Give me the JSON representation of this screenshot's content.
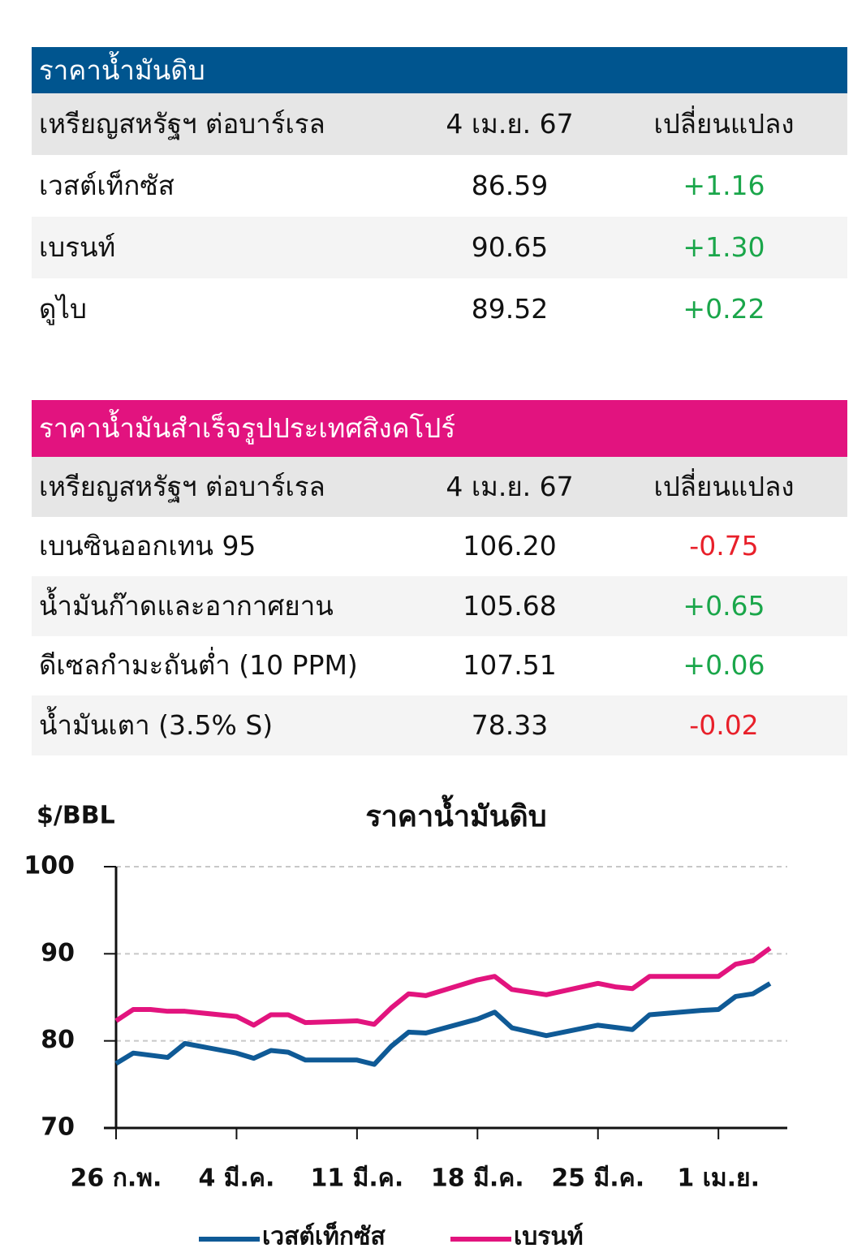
{
  "tables": [
    {
      "title": "ราคาน้ำมันดิบ",
      "color": "#00558f",
      "header": [
        "เหรียญสหรัฐฯ ต่อบาร์เรล",
        "4 เม.ย. 67",
        "เปลี่ยนแปลง"
      ],
      "rows": [
        [
          "เวสต์เท็กซัส",
          "86.59",
          "+1.16"
        ],
        [
          "เบรนท์",
          "90.65",
          "+1.30"
        ],
        [
          "ดูไบ",
          "89.52",
          "+0.22"
        ]
      ]
    },
    {
      "title": "ราคาน้ำมันสำเร็จรูปประเทศสิงคโปร์",
      "color": "#e2137f",
      "header": [
        "เหรียญสหรัฐฯ ต่อบาร์เรล",
        "4 เม.ย. 67",
        "เปลี่ยนแปลง"
      ],
      "rows": [
        [
          "เบนซินออกเทน 95",
          "106.20",
          "-0.75"
        ],
        [
          "น้ำมันก๊าดและอากาศยาน",
          "105.68",
          "+0.65"
        ],
        [
          "ดีเซลกำมะถันต่ำ (10 PPM)",
          "107.51",
          "+0.06"
        ],
        [
          "น้ำมันเตา (3.5% S)",
          "78.33",
          "-0.02"
        ]
      ]
    }
  ],
  "chart_data": {
    "type": "line",
    "title": "ราคาน้ำมันดิบ",
    "y_label": "$/BBL",
    "ylim": [
      70,
      100
    ],
    "yticks": [
      70,
      80,
      90,
      100
    ],
    "grid": true,
    "xlim": [
      0,
      39
    ],
    "xticks": [
      {
        "value": 0,
        "label": "26 ก.พ."
      },
      {
        "value": 7,
        "label": "4 มี.ค."
      },
      {
        "value": 14,
        "label": "11 มี.ค."
      },
      {
        "value": 21,
        "label": "18 มี.ค."
      },
      {
        "value": 28,
        "label": "25 มี.ค."
      },
      {
        "value": 35,
        "label": "1 เม.ย."
      }
    ],
    "series": [
      {
        "name": "เวสต์เท็กซัส",
        "color": "#0f5a96",
        "x": [
          0,
          1,
          3,
          4,
          7,
          8,
          9,
          10,
          11,
          14,
          15,
          16,
          17,
          18,
          21,
          22,
          23,
          25,
          28,
          30,
          31,
          34,
          35,
          36,
          37,
          38
        ],
        "values": [
          77.4,
          78.6,
          78.1,
          79.7,
          78.6,
          78.0,
          78.9,
          78.7,
          77.8,
          77.8,
          77.3,
          79.4,
          81.0,
          80.9,
          82.5,
          83.3,
          81.5,
          80.6,
          81.8,
          81.3,
          83.0,
          83.5,
          83.6,
          85.1,
          85.4,
          86.59
        ]
      },
      {
        "name": "เบรนท์",
        "color": "#e2147e",
        "x": [
          0,
          1,
          2,
          3,
          4,
          7,
          8,
          9,
          10,
          11,
          14,
          15,
          16,
          17,
          18,
          21,
          22,
          23,
          25,
          28,
          29,
          30,
          31,
          34,
          35,
          36,
          37,
          38
        ],
        "values": [
          82.3,
          83.6,
          83.6,
          83.4,
          83.4,
          82.8,
          81.8,
          83.0,
          83.0,
          82.1,
          82.3,
          81.9,
          83.8,
          85.4,
          85.2,
          87.0,
          87.4,
          85.9,
          85.3,
          86.6,
          86.2,
          86.0,
          87.4,
          87.4,
          87.4,
          88.8,
          89.2,
          90.65
        ]
      }
    ]
  }
}
